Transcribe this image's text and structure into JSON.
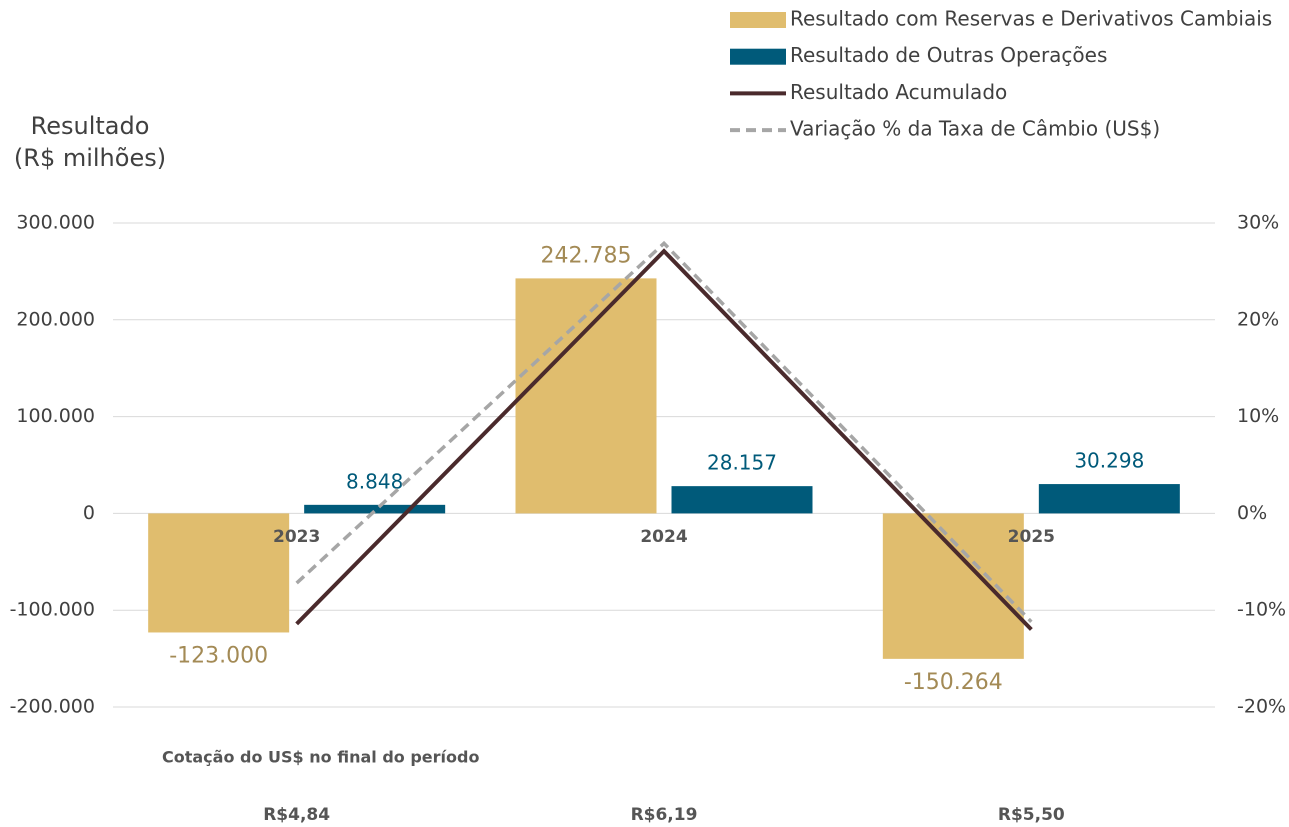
{
  "chart_data": {
    "type": "bar",
    "ylabel": [
      "Resultado",
      "(R$ milhões)"
    ],
    "categories": [
      "2023",
      "2024",
      "2025"
    ],
    "series": [
      {
        "name": "Resultado com Reservas e Derivativos Cambiais",
        "type": "bar",
        "color": "#e0bd6e",
        "label_color": "#a38a55",
        "values": [
          -123000,
          242785,
          -150264
        ],
        "value_labels": [
          "-123.000",
          "242.785",
          "-150.264"
        ]
      },
      {
        "name": "Resultado de Outras Operações",
        "type": "bar",
        "color": "#005a7a",
        "label_color": "#005a7a",
        "values": [
          8848,
          28157,
          30298
        ],
        "value_labels": [
          "8.848",
          "28.157",
          "30.298"
        ]
      },
      {
        "name": "Resultado Acumulado",
        "type": "line",
        "color": "#4a2a2c",
        "values": [
          -114152,
          270942,
          -119966
        ]
      },
      {
        "name": "Variação % da Taxa de Câmbio (US$)",
        "type": "line",
        "dashed": true,
        "axis": "y2",
        "color": "#a6a6a6",
        "values": [
          -7.2,
          27.9,
          -11.2
        ]
      }
    ],
    "ylim": [
      -200000,
      300000
    ],
    "yticks": [
      {
        "value": -200000,
        "label": "-200.000"
      },
      {
        "value": -100000,
        "label": "-100.000"
      },
      0,
      {
        "value": 100000,
        "label": "100.000"
      },
      {
        "value": 200000,
        "label": "200.000"
      },
      {
        "value": 300000,
        "label": "300.000"
      }
    ],
    "y2lim": [
      -20,
      30
    ],
    "y2ticks": [
      {
        "value": -20,
        "label": "-20%"
      },
      {
        "value": -10,
        "label": "-10%"
      },
      {
        "value": 0,
        "label": "0%"
      },
      {
        "value": 10,
        "label": "10%"
      },
      {
        "value": 20,
        "label": "20%"
      },
      {
        "value": 30,
        "label": "30%"
      }
    ],
    "grid": true,
    "legend": "top-right",
    "fx_title": "Cotação do US$ no final do período",
    "fx_rates": [
      "R$4,84",
      "R$6,19",
      "R$5,50"
    ]
  }
}
